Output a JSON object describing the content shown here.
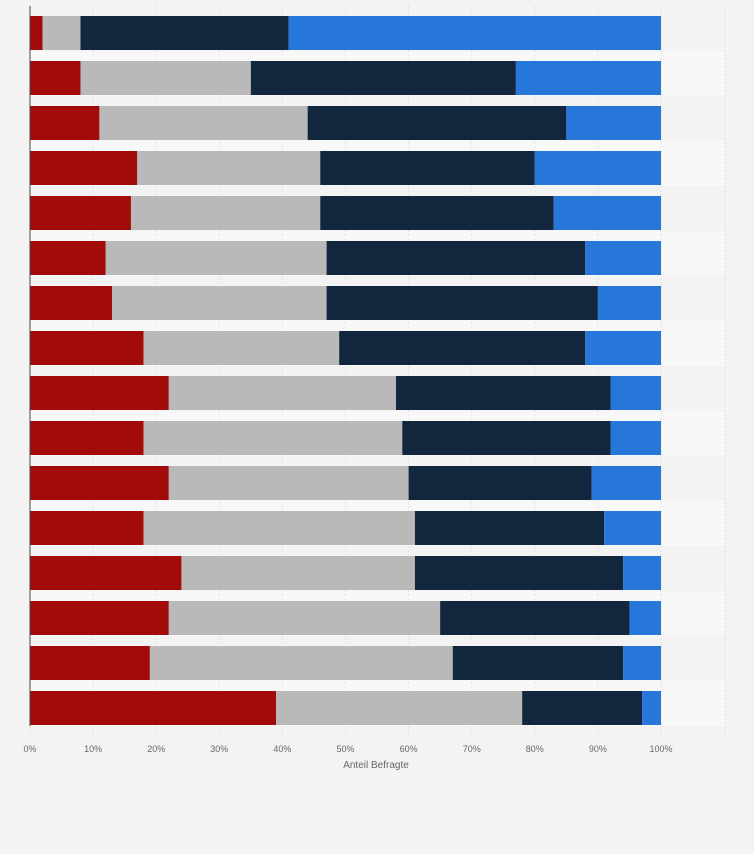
{
  "chart_data": {
    "type": "bar",
    "orientation": "horizontal",
    "stacked": true,
    "categories": [
      "",
      "",
      "",
      "",
      "",
      "",
      "",
      "",
      "",
      "",
      "",
      "",
      "",
      "",
      "",
      ""
    ],
    "series": [
      {
        "color": "#a30b0b",
        "values": [
          2,
          8,
          11,
          17,
          16,
          12,
          13,
          18,
          22,
          18,
          22,
          18,
          24,
          22,
          19,
          39
        ]
      },
      {
        "color": "#b9b9b9",
        "values": [
          6,
          27,
          33,
          29,
          30,
          35,
          34,
          31,
          36,
          41,
          38,
          43,
          37,
          43,
          48,
          39
        ]
      },
      {
        "color": "#12263d",
        "values": [
          33,
          42,
          41,
          34,
          37,
          41,
          43,
          39,
          34,
          33,
          29,
          30,
          33,
          30,
          27,
          19
        ]
      },
      {
        "color": "#2777db",
        "values": [
          59,
          23,
          15,
          20,
          17,
          12,
          10,
          12,
          8,
          8,
          11,
          9,
          6,
          5,
          6,
          3
        ]
      }
    ],
    "xlabel": "Anteil Befragte",
    "ylabel": "",
    "xlim": [
      0,
      100
    ],
    "x_ticks": [
      0,
      10,
      20,
      30,
      40,
      50,
      60,
      70,
      80,
      90,
      100
    ],
    "x_tick_labels": [
      "0%",
      "10%",
      "20%",
      "30%",
      "40%",
      "50%",
      "60%",
      "70%",
      "80%",
      "90%",
      "100%"
    ],
    "grid": true,
    "legend": "none"
  }
}
